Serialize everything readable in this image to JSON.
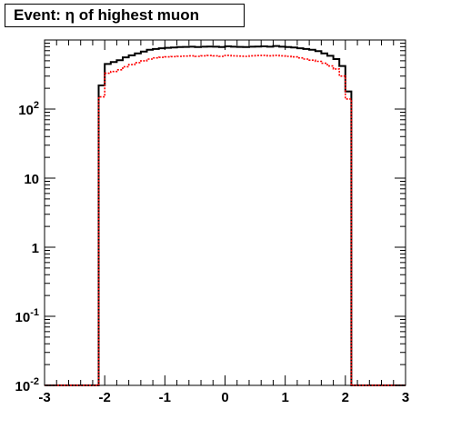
{
  "chart_data": {
    "type": "histogram",
    "title": "Event: η of highest muon",
    "xlabel": "",
    "ylabel": "",
    "xlim": [
      -3,
      3
    ],
    "ylim": [
      0.01,
      1000
    ],
    "log_y": true,
    "grid": false,
    "bin_edges": [
      -3.0,
      -2.1,
      -2.0,
      -1.9,
      -1.8,
      -1.7,
      -1.6,
      -1.5,
      -1.4,
      -1.3,
      -1.2,
      -1.1,
      -1.0,
      -0.9,
      -0.8,
      -0.7,
      -0.6,
      -0.5,
      -0.4,
      -0.3,
      -0.2,
      -0.1,
      0.0,
      0.1,
      0.2,
      0.3,
      0.4,
      0.5,
      0.6,
      0.7,
      0.8,
      0.9,
      1.0,
      1.1,
      1.2,
      1.3,
      1.4,
      1.5,
      1.6,
      1.7,
      1.8,
      1.9,
      2.0,
      2.1,
      3.0
    ],
    "series": [
      {
        "color": "#000000",
        "style": "solid",
        "values": [
          0.01,
          220,
          450,
          480,
          510,
          560,
          600,
          640,
          680,
          720,
          740,
          760,
          770,
          780,
          790,
          795,
          800,
          790,
          800,
          805,
          800,
          790,
          810,
          800,
          795,
          790,
          800,
          805,
          810,
          800,
          820,
          800,
          790,
          780,
          760,
          740,
          720,
          690,
          640,
          590,
          530,
          420,
          180,
          0.01
        ]
      },
      {
        "color": "#ff0000",
        "style": "dashed",
        "values": [
          0.01,
          150,
          330,
          350,
          370,
          410,
          440,
          470,
          500,
          530,
          550,
          560,
          570,
          575,
          580,
          585,
          590,
          580,
          590,
          595,
          590,
          580,
          600,
          590,
          585,
          580,
          590,
          595,
          600,
          590,
          600,
          590,
          580,
          570,
          550,
          530,
          510,
          490,
          460,
          420,
          380,
          300,
          140,
          0.01
        ]
      }
    ],
    "x_ticks": [
      {
        "v": -3,
        "label": "-3"
      },
      {
        "v": -2,
        "label": "-2"
      },
      {
        "v": -1,
        "label": "-1"
      },
      {
        "v": 0,
        "label": "0"
      },
      {
        "v": 1,
        "label": "1"
      },
      {
        "v": 2,
        "label": "2"
      },
      {
        "v": 3,
        "label": "3"
      }
    ],
    "y_ticks": [
      {
        "v": 0.01,
        "base": "10",
        "exp": "-2"
      },
      {
        "v": 0.1,
        "base": "10",
        "exp": "-1"
      },
      {
        "v": 1,
        "base": "1",
        "exp": ""
      },
      {
        "v": 10,
        "base": "10",
        "exp": ""
      },
      {
        "v": 100,
        "base": "10",
        "exp": "2"
      }
    ]
  }
}
